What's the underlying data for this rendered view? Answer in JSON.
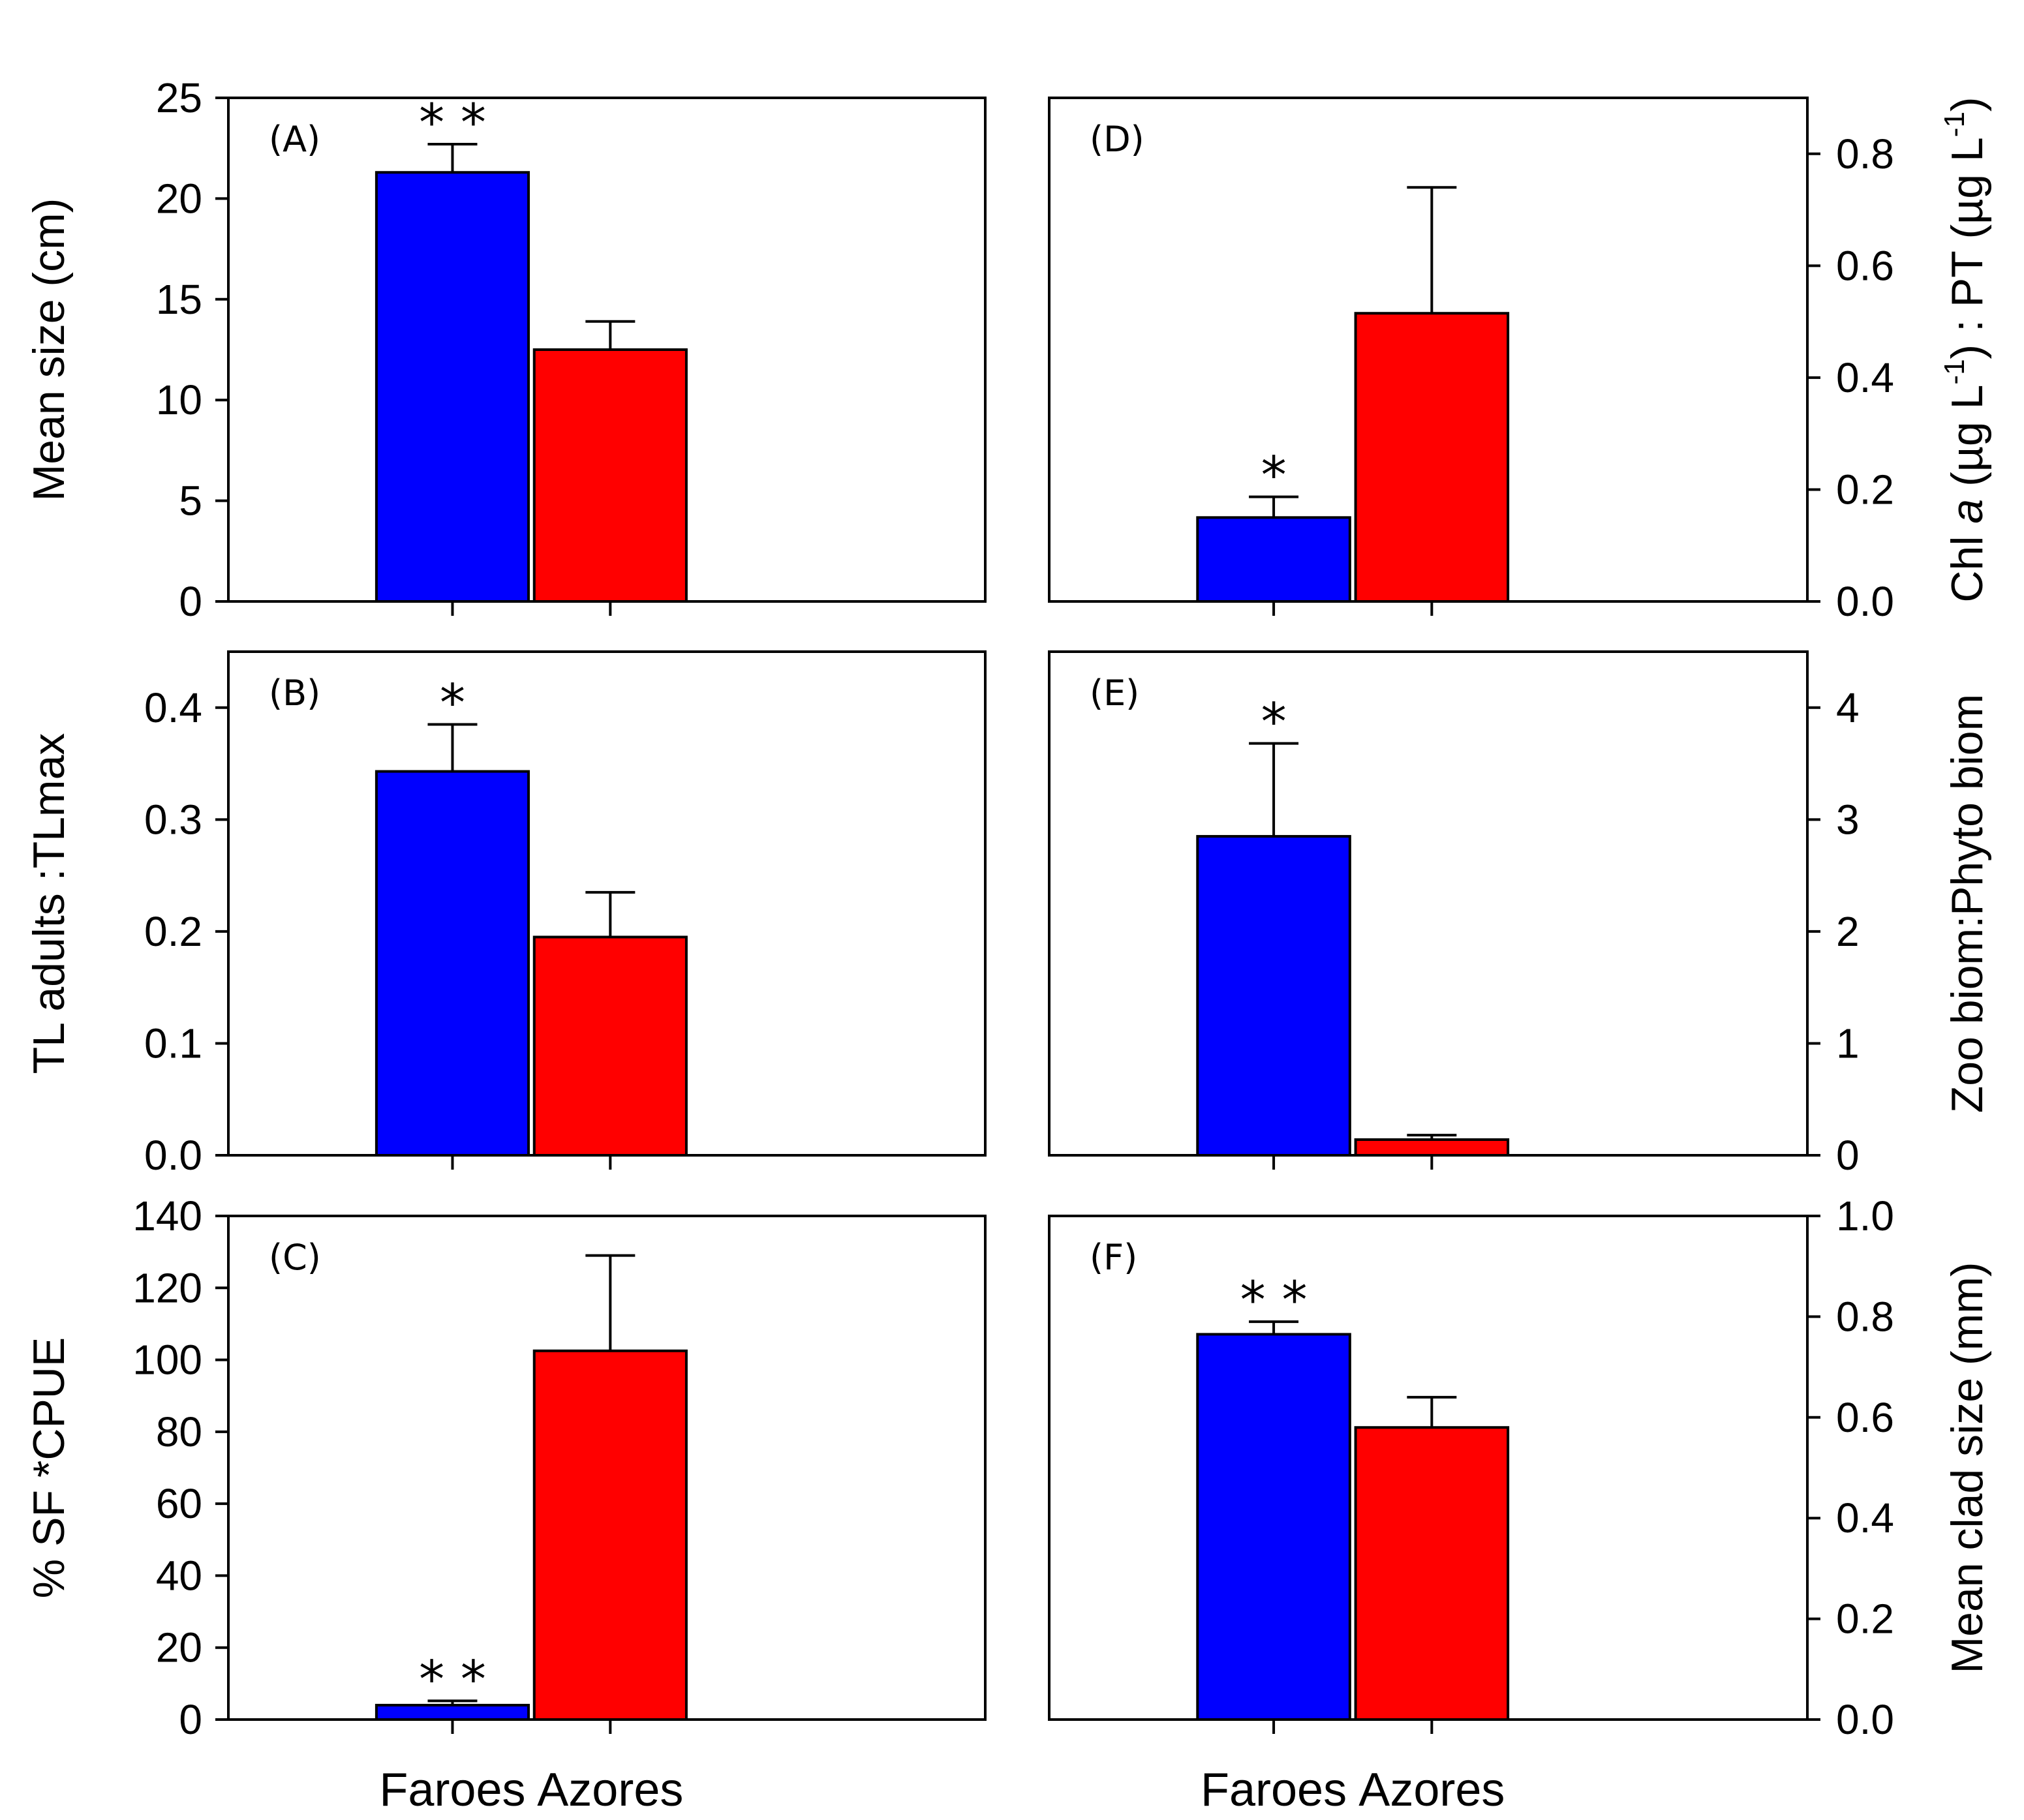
{
  "chart_data": [
    {
      "type": "bar",
      "panel": "(A)",
      "categories": [
        "Faroes",
        "Azores"
      ],
      "values": [
        21.3,
        12.5
      ],
      "errors": [
        1.4,
        1.4
      ],
      "significance": [
        "* *",
        ""
      ],
      "ylabel": "Mean size (cm)",
      "ylim": [
        0,
        25
      ],
      "yticks": [
        "0",
        "5",
        "10",
        "15",
        "20",
        "25"
      ],
      "axis_side": "left",
      "show_categories": false
    },
    {
      "type": "bar",
      "panel": "(B)",
      "categories": [
        "Faroes",
        "Azores"
      ],
      "values": [
        0.343,
        0.195
      ],
      "errors": [
        0.042,
        0.04
      ],
      "significance": [
        "*",
        ""
      ],
      "ylabel": "TL adults :TLmax",
      "ylim": [
        0,
        0.45
      ],
      "yticks": [
        "0.0",
        "0.1",
        "0.2",
        "0.3",
        "0.4"
      ],
      "axis_side": "left",
      "show_categories": false
    },
    {
      "type": "bar",
      "panel": "(C)",
      "categories": [
        "Faroes",
        "Azores"
      ],
      "values": [
        4,
        102.5
      ],
      "errors": [
        1.2,
        26.5
      ],
      "significance": [
        "* *",
        ""
      ],
      "ylabel": "%  SF *CPUE",
      "ylim": [
        0,
        140
      ],
      "yticks": [
        "0",
        "20",
        "40",
        "60",
        "80",
        "100",
        "120",
        "140"
      ],
      "axis_side": "left",
      "show_categories": true
    },
    {
      "type": "bar",
      "panel": "(D)",
      "categories": [
        "Faroes",
        "Azores"
      ],
      "values": [
        0.15,
        0.515
      ],
      "errors": [
        0.037,
        0.225
      ],
      "significance": [
        "*",
        ""
      ],
      "ylabel": "Chl a (µg L-1) : PT (µg L-1)",
      "ylabel_parts": {
        "a": "Chl ",
        "b": "a",
        "c": " (µg L",
        "d": "-1",
        "e": ") : PT (µg L",
        "f": "-1",
        "g": ")"
      },
      "ylim": [
        0,
        0.9
      ],
      "yticks": [
        "0.0",
        "0.2",
        "0.4",
        "0.6",
        "0.8"
      ],
      "axis_side": "right",
      "show_categories": false
    },
    {
      "type": "bar",
      "panel": "(E)",
      "categories": [
        "Faroes",
        "Azores"
      ],
      "values": [
        2.85,
        0.14
      ],
      "errors": [
        0.83,
        0.04
      ],
      "significance": [
        "*",
        ""
      ],
      "ylabel": "Zoo biom:Phyto biom",
      "ylim": [
        0,
        4.5
      ],
      "yticks": [
        "0",
        "1",
        "2",
        "3",
        "4"
      ],
      "axis_side": "right",
      "show_categories": false
    },
    {
      "type": "bar",
      "panel": "(F)",
      "categories": [
        "Faroes",
        "Azores"
      ],
      "values": [
        0.765,
        0.58
      ],
      "errors": [
        0.025,
        0.06
      ],
      "significance": [
        "* *",
        ""
      ],
      "ylabel": "Mean clad size (mm)",
      "ylim": [
        0,
        1.0
      ],
      "yticks": [
        "0.0",
        "0.2",
        "0.4",
        "0.6",
        "0.8",
        "1.0"
      ],
      "axis_side": "right",
      "show_categories": true
    }
  ],
  "colors": {
    "faroes": "#0000ff",
    "azores": "#ff0000"
  }
}
